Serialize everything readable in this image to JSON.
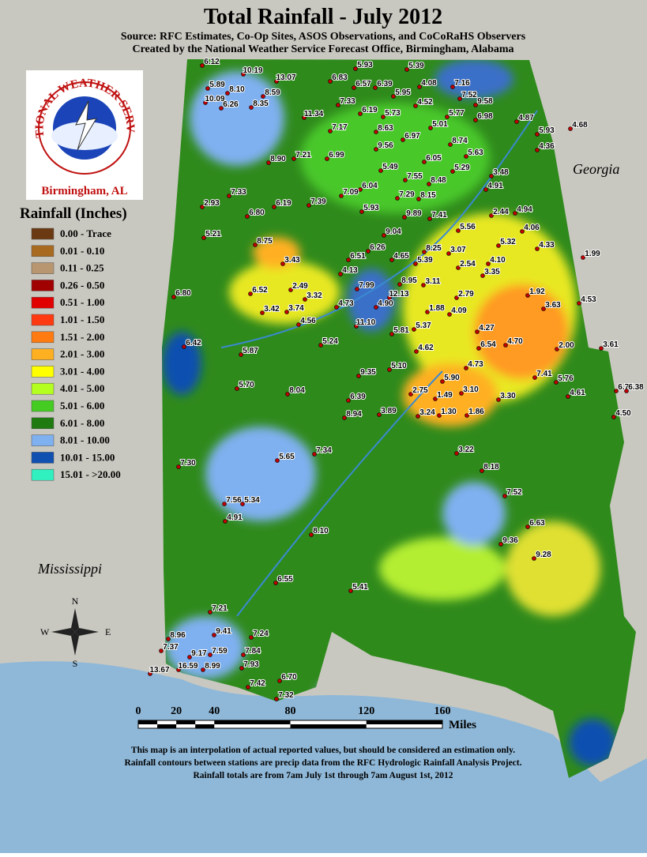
{
  "header": {
    "title": "Total Rainfall - July 2012",
    "subtitle_1": "Source: RFC Estimates, Co-Op Sites, ASOS Observations, and CoCoRaHS Observers",
    "subtitle_2": "Created by the National Weather Service Forecast Office, Birmingham, Alabama"
  },
  "logo": {
    "text": "NATIONAL WEATHER SERVICE",
    "office": "Birmingham, AL"
  },
  "legend": {
    "title": "Rainfall (Inches)",
    "items": [
      {
        "label": "0.00 - Trace",
        "color": "#6b3a12"
      },
      {
        "label": "0.01 - 0.10",
        "color": "#a86a1e"
      },
      {
        "label": "0.11 - 0.25",
        "color": "#b89670"
      },
      {
        "label": "0.26 - 0.50",
        "color": "#a00000"
      },
      {
        "label": "0.51 - 1.00",
        "color": "#e00000"
      },
      {
        "label": "1.01 - 1.50",
        "color": "#ff3a10"
      },
      {
        "label": "1.51 - 2.00",
        "color": "#ff7a10"
      },
      {
        "label": "2.01 - 3.00",
        "color": "#ffb020"
      },
      {
        "label": "3.01 - 4.00",
        "color": "#ffff00"
      },
      {
        "label": "4.01 - 5.00",
        "color": "#b4ff20"
      },
      {
        "label": "5.01 - 6.00",
        "color": "#44cc22"
      },
      {
        "label": "6.01 - 8.00",
        "color": "#1f7a10"
      },
      {
        "label": "8.01 - 10.00",
        "color": "#7fb0f0"
      },
      {
        "label": "10.01 - 15.00",
        "color": "#1050b0"
      },
      {
        "label": "15.01 - >20.00",
        "color": "#30f0c0"
      }
    ]
  },
  "states": {
    "east": "Georgia",
    "west": "Mississippi"
  },
  "compass": {
    "n": "N",
    "s": "S",
    "e": "E",
    "w": "W"
  },
  "scale": {
    "ticks": [
      "0",
      "20",
      "40",
      "80",
      "120",
      "160"
    ],
    "unit": "Miles"
  },
  "footer": [
    "This map is an interpolation of actual reported values, but should be considered an estimation only.",
    "Rainfall contours between stations are precip data from the RFC Hydrologic Rainfall Analysis Project.",
    "Rainfall totals are from 7am July 1st through 7am August 1st, 2012"
  ],
  "stations": [
    "6.12",
    "10.19",
    "13.07",
    "5.89",
    "8.10",
    "10.09",
    "8.59",
    "6.26",
    "8.35",
    "6.83",
    "5.93",
    "5.39",
    "6.57",
    "6.39",
    "4.08",
    "7.16",
    "7.52",
    "9.58",
    "7.33",
    "5.95",
    "4.52",
    "5.73",
    "6.19",
    "11.34",
    "5.77",
    "6.98",
    "5.01",
    "4.87",
    "5.93",
    "4.68",
    "7.17",
    "8.63",
    "6.97",
    "8.74",
    "9.56",
    "4.36",
    "7.21",
    "6.99",
    "8.90",
    "6.05",
    "5.63",
    "5.29",
    "5.49",
    "7.55",
    "8.48",
    "3.48",
    "4.91",
    "6.04",
    "7.09",
    "7.29",
    "8.15",
    "7.33",
    "6.19",
    "7.39",
    "2.93",
    "6.80",
    "5.93",
    "9.89",
    "7.41",
    "2.44",
    "4.94",
    "5.56",
    "4.06",
    "5.21",
    "9.04",
    "8.75",
    "5.32",
    "4.33",
    "1.99",
    "6.26",
    "8.25",
    "3.07",
    "4.65",
    "5.39",
    "2.54",
    "4.10",
    "6.51",
    "3.43",
    "3.35",
    "4.13",
    "8.95",
    "3.11",
    "7.99",
    "12.13",
    "2.49",
    "6.52",
    "3.32",
    "2.79",
    "1.92",
    "6.80",
    "4.90",
    "4.73",
    "1.88",
    "4.09",
    "3.42",
    "3.74",
    "3.63",
    "4.53",
    "4.56",
    "11.10",
    "5.37",
    "5.81",
    "4.27",
    "4.70",
    "6.54",
    "2.00",
    "3.61",
    "6.42",
    "5.87",
    "5.24",
    "4.62",
    "4.73",
    "5.10",
    "5.90",
    "9.35",
    "7.41",
    "5.76",
    "5.70",
    "8.04",
    "2.75",
    "1.49",
    "3.10",
    "3.30",
    "4.61",
    "6.77",
    "6.38",
    "6.39",
    "3.24",
    "1.30",
    "1.86",
    "8.94",
    "3.89",
    "4.50",
    "3.22",
    "7.30",
    "5.65",
    "7.34",
    "8.18",
    "7.52",
    "7.56",
    "5.34",
    "4.91",
    "6.63",
    "8.10",
    "9.36",
    "9.28",
    "6.55",
    "5.41",
    "7.21",
    "9.41",
    "7.24",
    "8.96",
    "7.37",
    "9.17",
    "7.59",
    "7.84",
    "16.59",
    "8.99",
    "7.93",
    "13.67",
    "6.70",
    "7.42",
    "7.32"
  ]
}
